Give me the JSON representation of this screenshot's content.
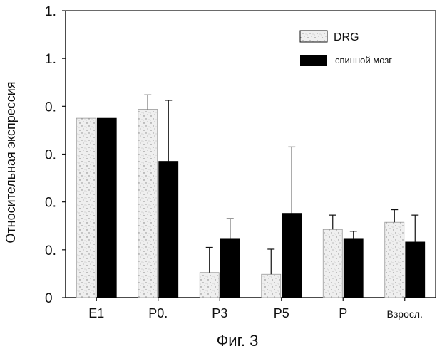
{
  "chart_data": {
    "type": "bar",
    "ylabel": "Относительная экспрессия",
    "ylim": [
      0,
      1.6
    ],
    "ytick_labels": [
      "0",
      "0.",
      "0.",
      "0.",
      "0.",
      "1.",
      "1."
    ],
    "categories": [
      "E1",
      "P0.",
      "P3",
      "P5",
      "P",
      "Взросл."
    ],
    "series": [
      {
        "name": "DRG",
        "color": "#e6e6e6",
        "pattern": "stippled",
        "values": [
          1.0,
          1.05,
          0.14,
          0.13,
          0.38,
          0.42
        ],
        "errors": [
          0.0,
          0.08,
          0.14,
          0.14,
          0.08,
          0.07
        ]
      },
      {
        "name": "спинной мозг",
        "color": "#000000",
        "pattern": "solid",
        "values": [
          1.0,
          0.76,
          0.33,
          0.47,
          0.33,
          0.31
        ],
        "errors": [
          0.0,
          0.34,
          0.11,
          0.37,
          0.04,
          0.15
        ]
      }
    ],
    "legend_position": "top-right",
    "grid": false
  },
  "caption": "Фиг. 3"
}
